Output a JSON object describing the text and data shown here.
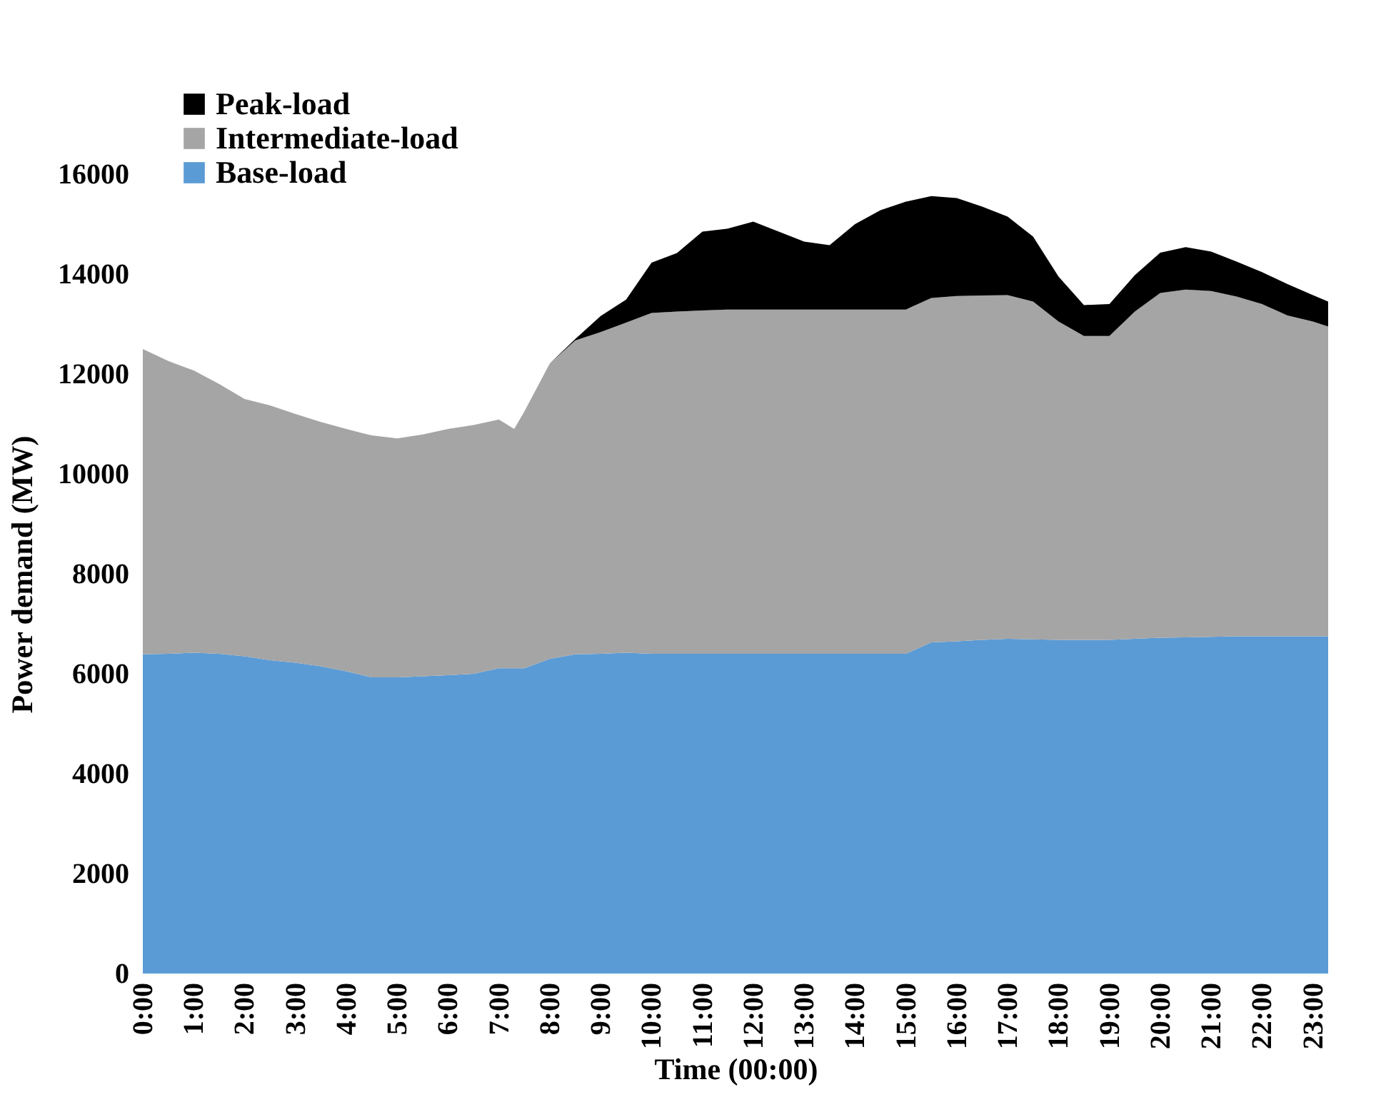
{
  "chart_data": {
    "type": "area",
    "stacked": true,
    "xlabel": "Time (00:00)",
    "ylabel": "Power demand (MW)",
    "x": [
      0,
      0.5,
      1,
      1.5,
      2,
      2.5,
      3,
      3.5,
      4,
      4.5,
      5,
      5.5,
      6,
      6.5,
      7,
      7.3,
      7.5,
      8,
      8.5,
      9,
      9.5,
      10,
      10.5,
      11,
      11.5,
      12,
      12.5,
      13,
      13.5,
      14,
      14.5,
      15,
      15.5,
      16,
      16.5,
      17,
      17.5,
      18,
      18.5,
      19,
      19.5,
      20,
      20.5,
      21,
      21.5,
      22,
      22.5,
      23,
      23.3
    ],
    "series": [
      {
        "name": "Base-load",
        "color": "#5b9bd5",
        "values": [
          6390,
          6400,
          6420,
          6400,
          6350,
          6270,
          6220,
          6150,
          6050,
          5930,
          5930,
          5950,
          5970,
          6000,
          6110,
          6110,
          6110,
          6300,
          6390,
          6400,
          6420,
          6400,
          6400,
          6400,
          6400,
          6400,
          6400,
          6400,
          6400,
          6400,
          6400,
          6400,
          6630,
          6650,
          6680,
          6700,
          6690,
          6680,
          6680,
          6680,
          6700,
          6720,
          6730,
          6740,
          6750,
          6750,
          6750,
          6750,
          6750
        ]
      },
      {
        "name": "Intermediate-load",
        "color": "#a5a5a5",
        "values": [
          6110,
          5860,
          5650,
          5400,
          5150,
          5100,
          4980,
          4890,
          4850,
          4840,
          4780,
          4840,
          4930,
          4980,
          4980,
          4790,
          5140,
          5910,
          6280,
          6440,
          6610,
          6820,
          6850,
          6870,
          6890,
          6890,
          6890,
          6890,
          6890,
          6890,
          6890,
          6890,
          6890,
          6910,
          6890,
          6880,
          6760,
          6370,
          6080,
          6080,
          6550,
          6900,
          6960,
          6920,
          6800,
          6650,
          6420,
          6300,
          6200
        ]
      },
      {
        "name": "Peak-load",
        "color": "#000000",
        "values": [
          0,
          0,
          0,
          0,
          0,
          0,
          0,
          0,
          0,
          0,
          0,
          0,
          0,
          0,
          0,
          0,
          0,
          0,
          30,
          320,
          460,
          1010,
          1170,
          1580,
          1620,
          1760,
          1560,
          1360,
          1290,
          1710,
          1990,
          2160,
          2040,
          1960,
          1780,
          1570,
          1300,
          900,
          620,
          640,
          730,
          810,
          850,
          790,
          700,
          640,
          630,
          530,
          500
        ]
      }
    ],
    "xlim": [
      0,
      23.3
    ],
    "xticks": [
      {
        "value": 0,
        "label": "0:00"
      },
      {
        "value": 1,
        "label": "1:00"
      },
      {
        "value": 2,
        "label": "2:00"
      },
      {
        "value": 3,
        "label": "3:00"
      },
      {
        "value": 4,
        "label": "4:00"
      },
      {
        "value": 5,
        "label": "5:00"
      },
      {
        "value": 6,
        "label": "6:00"
      },
      {
        "value": 7,
        "label": "7:00"
      },
      {
        "value": 8,
        "label": "8:00"
      },
      {
        "value": 9,
        "label": "9:00"
      },
      {
        "value": 10,
        "label": "10:00"
      },
      {
        "value": 11,
        "label": "11:00"
      },
      {
        "value": 12,
        "label": "12:00"
      },
      {
        "value": 13,
        "label": "13:00"
      },
      {
        "value": 14,
        "label": "14:00"
      },
      {
        "value": 15,
        "label": "15:00"
      },
      {
        "value": 16,
        "label": "16:00"
      },
      {
        "value": 17,
        "label": "17:00"
      },
      {
        "value": 18,
        "label": "18:00"
      },
      {
        "value": 19,
        "label": "19:00"
      },
      {
        "value": 20,
        "label": "20:00"
      },
      {
        "value": 21,
        "label": "21:00"
      },
      {
        "value": 22,
        "label": "22:00"
      },
      {
        "value": 23,
        "label": "23:00"
      }
    ],
    "ylim": [
      0,
      16000
    ],
    "yticks": [
      0,
      2000,
      4000,
      6000,
      8000,
      10000,
      12000,
      14000,
      16000
    ],
    "grid": false,
    "legend": "top left"
  }
}
